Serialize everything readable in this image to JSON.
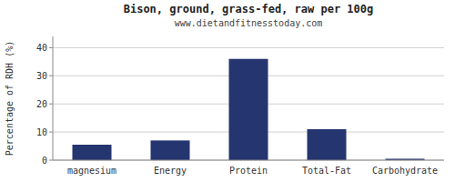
{
  "chart_data": {
    "type": "bar",
    "title": "Bison, ground, grass-fed, raw per 100g",
    "subtitle": "www.dietandfitnesstoday.com",
    "categories": [
      "magnesium",
      "Energy",
      "Protein",
      "Total-Fat",
      "Carbohydrate"
    ],
    "values": [
      5.5,
      7.0,
      36.0,
      11.0,
      0.5
    ],
    "color": "#253570",
    "ylabel": "Percentage of RDH (%)",
    "ylim": [
      0,
      44
    ],
    "yticks": [
      0,
      10,
      20,
      30,
      40
    ],
    "grid": true
  }
}
